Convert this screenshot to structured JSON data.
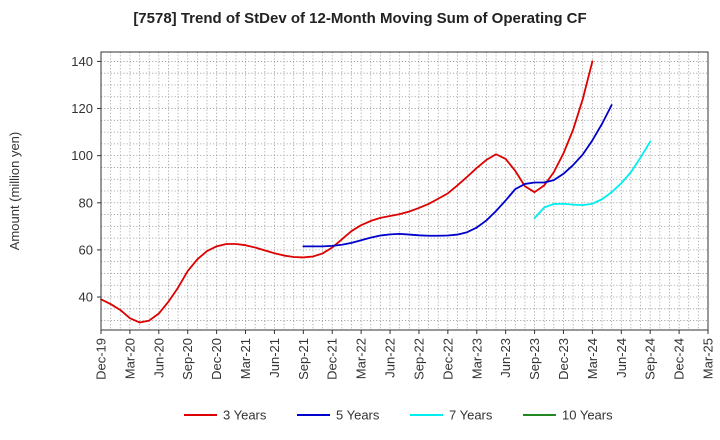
{
  "chart_data": {
    "type": "line",
    "title": "[7578]  Trend of StDev of 12-Month Moving Sum of Operating CF",
    "xlabel": "",
    "ylabel": "Amount (million yen)",
    "ylim": [
      26,
      144
    ],
    "yticks": [
      40,
      60,
      80,
      100,
      120,
      140
    ],
    "x_tick_labels": [
      "Dec-19",
      "Mar-20",
      "Jun-20",
      "Sep-20",
      "Dec-20",
      "Mar-21",
      "Jun-21",
      "Sep-21",
      "Dec-21",
      "Mar-22",
      "Jun-22",
      "Sep-22",
      "Dec-22",
      "Mar-23",
      "Jun-23",
      "Sep-23",
      "Dec-23",
      "Mar-24",
      "Jun-24",
      "Sep-24",
      "Dec-24",
      "Mar-25"
    ],
    "grid": true,
    "legend_position": "bottom",
    "series": [
      {
        "name": "3 Years",
        "color": "#dd0000",
        "start": "Dec-19",
        "values": [
          39,
          37,
          34.5,
          31,
          29.2,
          30,
          33,
          38,
          44,
          51,
          56,
          59.5,
          61.5,
          62.5,
          62.5,
          62,
          61,
          59.8,
          58.6,
          57.6,
          57,
          56.8,
          57.2,
          58.5,
          61,
          64.5,
          68,
          70.5,
          72.3,
          73.6,
          74.4,
          75.2,
          76.3,
          77.8,
          79.5,
          81.7,
          84,
          87.4,
          91,
          94.8,
          98.2,
          100.6,
          98.6,
          93.5,
          87,
          84.5,
          87.4,
          93,
          101,
          111,
          124,
          140
        ]
      },
      {
        "name": "5 Years",
        "color": "#0000cc",
        "start": "Sep-21",
        "values": [
          61.5,
          61.5,
          61.5,
          61.7,
          62.2,
          63,
          64.1,
          65.2,
          66.1,
          66.6,
          66.8,
          66.5,
          66.2,
          66,
          66,
          66.1,
          66.5,
          67.5,
          69.5,
          72.5,
          76.5,
          81,
          85.8,
          88,
          88.6,
          88.6,
          89.6,
          92.3,
          96,
          100.5,
          106.5,
          113.5,
          121.5
        ]
      },
      {
        "name": "7 Years",
        "color": "#00eeee",
        "start": "Sep-23",
        "values": [
          73.5,
          78,
          79.5,
          79.6,
          79.2,
          79,
          79.6,
          81.5,
          84.5,
          88.3,
          93,
          99.2,
          106
        ]
      },
      {
        "name": "10 Years",
        "color": "#228822",
        "start": "Dec-24",
        "values": []
      }
    ]
  }
}
